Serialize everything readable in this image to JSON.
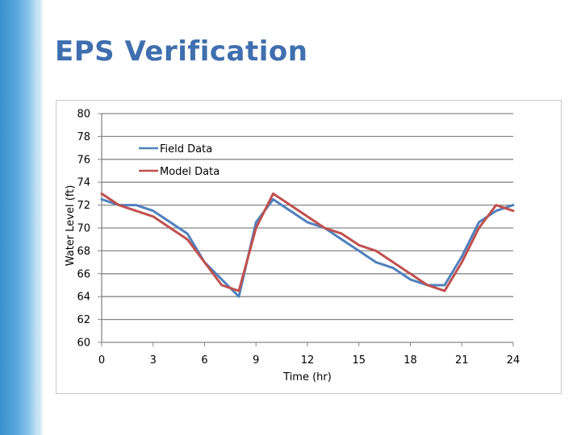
{
  "slide": {
    "title": "EPS Verification"
  },
  "colors": {
    "title": "#3f6fae",
    "field_series": "#4f81bd",
    "model_series": "#c0504d",
    "grid": "#878787",
    "side_bar": "#5aa9de"
  },
  "chart_data": {
    "type": "line",
    "title": "",
    "xlabel": "Time (hr)",
    "ylabel": "Water Level (ft)",
    "xlim": [
      0,
      24
    ],
    "ylim": [
      60,
      80
    ],
    "xticks": [
      0,
      3,
      6,
      9,
      12,
      15,
      18,
      21,
      24
    ],
    "yticks": [
      60,
      62,
      64,
      66,
      68,
      70,
      72,
      74,
      76,
      78,
      80
    ],
    "grid": "horizontal",
    "legend_position": "top-left inside plot",
    "series": [
      {
        "name": "Field Data",
        "color": "#4f81bd",
        "x": [
          0,
          1,
          2,
          3,
          4,
          5,
          6,
          7,
          8,
          9,
          10,
          11,
          12,
          13,
          14,
          15,
          16,
          17,
          18,
          19,
          20,
          21,
          22,
          23,
          24
        ],
        "y": [
          72.5,
          72.0,
          72.0,
          71.5,
          70.5,
          69.5,
          67.0,
          65.5,
          64.0,
          70.5,
          72.5,
          71.5,
          70.5,
          70.0,
          69.0,
          68.0,
          67.0,
          66.5,
          65.5,
          65.0,
          65.0,
          67.5,
          70.5,
          71.5,
          72.0
        ]
      },
      {
        "name": "Model Data",
        "color": "#c0504d",
        "x": [
          0,
          1,
          2,
          3,
          4,
          5,
          6,
          7,
          8,
          9,
          10,
          11,
          12,
          13,
          14,
          15,
          16,
          17,
          18,
          19,
          20,
          21,
          22,
          23,
          24
        ],
        "y": [
          73.0,
          72.0,
          71.5,
          71.0,
          70.0,
          69.0,
          67.0,
          65.0,
          64.5,
          70.0,
          73.0,
          72.0,
          71.0,
          70.0,
          69.5,
          68.5,
          68.0,
          67.0,
          66.0,
          65.0,
          64.5,
          67.0,
          70.0,
          72.0,
          71.5
        ]
      }
    ]
  }
}
